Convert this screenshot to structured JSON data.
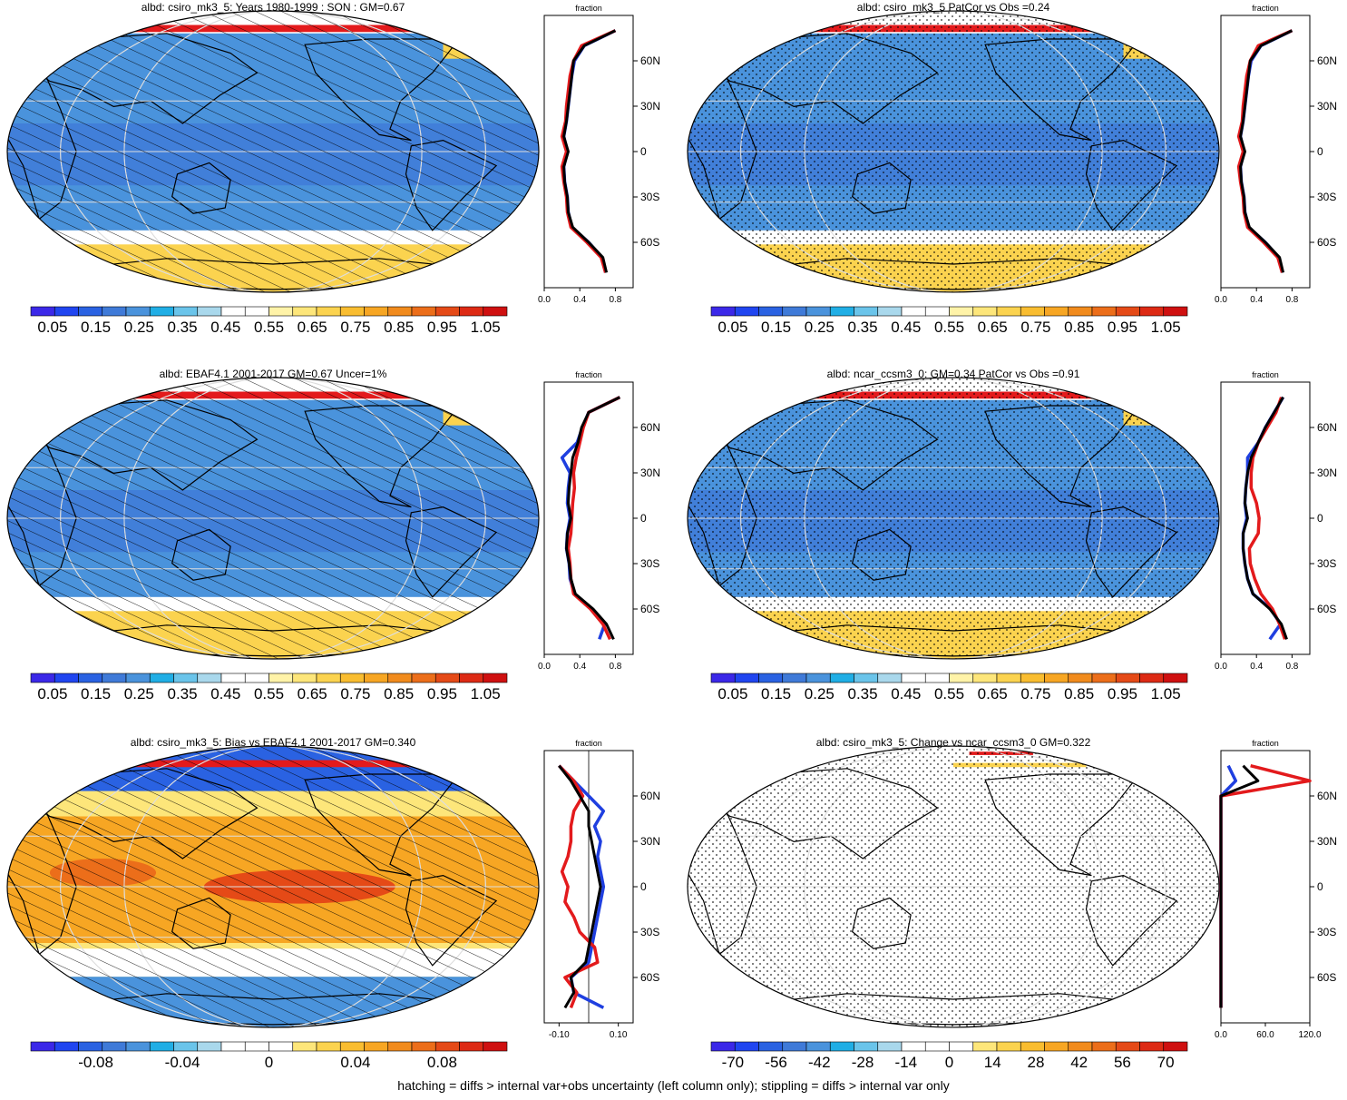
{
  "footer": "hatching = diffs > internal var+obs uncertainty (left column only); stippling = diffs > internal var only",
  "colors": {
    "palette": [
      "#3b28e8",
      "#2045f0",
      "#2a62e2",
      "#3f7ad8",
      "#4a93dc",
      "#20aee5",
      "#6ac4ea",
      "#a9d8ec",
      "#ffffff",
      "#ffffff",
      "#fff3a8",
      "#fde67a",
      "#fbd34f",
      "#f9bd30",
      "#f7a623",
      "#f18b1d",
      "#ec6e1a",
      "#e54a17",
      "#dd2a14",
      "#cf1010"
    ],
    "ocean_low": "#3f7ad8",
    "ocean_mid": "#4a93dc",
    "ice": "#fbd34f",
    "red_line": "#e31a1c",
    "blue_line": "#1f3fe0",
    "black_line": "#000000"
  },
  "profile_label": "fraction",
  "lat_ticks": [
    "60N",
    "30N",
    "0",
    "30S",
    "60S"
  ],
  "panels": [
    {
      "title": "albd: csiro_mk3_5: Years 1980-1999 : SON : GM=0.67",
      "map_type": "mean",
      "pattern": "hatch",
      "colorbar_labels": [
        "0.05",
        "0.15",
        "0.25",
        "0.35",
        "0.45",
        "0.55",
        "0.65",
        "0.75",
        "0.85",
        "0.95",
        "1.05"
      ],
      "profile_ticks": [
        "0.0",
        "0.4",
        "0.8"
      ]
    },
    {
      "title": "albd: csiro_mk3_5 PatCor vs Obs =0.24",
      "map_type": "mean",
      "pattern": "stipple",
      "colorbar_labels": [
        "0.05",
        "0.15",
        "0.25",
        "0.35",
        "0.45",
        "0.55",
        "0.65",
        "0.75",
        "0.85",
        "0.95",
        "1.05"
      ],
      "profile_ticks": [
        "0.0",
        "0.4",
        "0.8"
      ]
    },
    {
      "title": "albd: EBAF4.1 2001-2017 GM=0.67 Uncer=1%",
      "map_type": "mean",
      "pattern": "hatch",
      "colorbar_labels": [
        "0.05",
        "0.15",
        "0.25",
        "0.35",
        "0.45",
        "0.55",
        "0.65",
        "0.75",
        "0.85",
        "0.95",
        "1.05"
      ],
      "profile_ticks": [
        "0.0",
        "0.4",
        "0.8"
      ]
    },
    {
      "title": "albd: ncar_ccsm3_0: GM=0.34 PatCor vs Obs =0.91",
      "map_type": "mean",
      "pattern": "stipple",
      "colorbar_labels": [
        "0.05",
        "0.15",
        "0.25",
        "0.35",
        "0.45",
        "0.55",
        "0.65",
        "0.75",
        "0.85",
        "0.95",
        "1.05"
      ],
      "profile_ticks": [
        "0.0",
        "0.4",
        "0.8"
      ]
    },
    {
      "title": "albd: csiro_mk3_5: Bias vs EBAF4.1 2001-2017  GM=0.340",
      "map_type": "bias",
      "pattern": "hatch",
      "colorbar_labels": [
        "-0.08",
        "-0.04",
        "0",
        "0.04",
        "0.08"
      ],
      "profile_ticks": [
        "-0.10",
        "0.10"
      ]
    },
    {
      "title": "albd: csiro_mk3_5: Change vs ncar_ccsm3_0 GM=0.322",
      "map_type": "change",
      "pattern": "stipple",
      "colorbar_labels": [
        "-70",
        "-56",
        "-42",
        "-28",
        "-14",
        "0",
        "14",
        "28",
        "42",
        "56",
        "70"
      ],
      "profile_ticks": [
        "0.0",
        "60.0",
        "120.0"
      ]
    }
  ],
  "chart_data": [
    {
      "type": "heatmap",
      "title": "albd: csiro_mk3_5: Years 1980-1999 : SON : GM=0.67",
      "colorbar": {
        "min": 0.0,
        "max": 1.1,
        "labels": [
          0.05,
          0.15,
          0.25,
          0.35,
          0.45,
          0.55,
          0.65,
          0.75,
          0.85,
          0.95,
          1.05
        ]
      },
      "zonal_profile": {
        "xlabel": "fraction",
        "xlim": [
          0,
          1
        ],
        "lat": [
          -80,
          -70,
          -60,
          -50,
          -40,
          -30,
          -20,
          -10,
          0,
          10,
          20,
          30,
          40,
          50,
          60,
          70,
          80
        ],
        "series": [
          {
            "color": "black",
            "values": [
              0.7,
              0.66,
              0.5,
              0.32,
              0.27,
              0.26,
              0.23,
              0.22,
              0.27,
              0.22,
              0.25,
              0.27,
              0.29,
              0.31,
              0.33,
              0.45,
              0.8
            ]
          },
          {
            "color": "red",
            "values": [
              0.69,
              0.64,
              0.48,
              0.3,
              0.26,
              0.25,
              0.22,
              0.2,
              0.25,
              0.2,
              0.24,
              0.25,
              0.27,
              0.29,
              0.33,
              0.42,
              0.8
            ]
          },
          {
            "color": "blue",
            "values": [
              0.69,
              0.65,
              0.5,
              0.31,
              0.27,
              0.26,
              0.23,
              0.22,
              0.26,
              0.22,
              0.25,
              0.27,
              0.29,
              0.31,
              0.34,
              0.45,
              0.8
            ]
          }
        ]
      }
    },
    {
      "type": "heatmap",
      "title": "albd: csiro_mk3_5 PatCor vs Obs =0.24",
      "colorbar": {
        "min": 0.0,
        "max": 1.1,
        "labels": [
          0.05,
          0.15,
          0.25,
          0.35,
          0.45,
          0.55,
          0.65,
          0.75,
          0.85,
          0.95,
          1.05
        ]
      },
      "zonal_profile": {
        "xlabel": "fraction",
        "xlim": [
          0,
          1
        ],
        "lat": [
          -80,
          -70,
          -60,
          -50,
          -40,
          -30,
          -20,
          -10,
          0,
          10,
          20,
          30,
          40,
          50,
          60,
          70,
          80
        ],
        "series": [
          {
            "color": "black",
            "values": [
              0.7,
              0.66,
              0.5,
              0.32,
              0.27,
              0.26,
              0.23,
              0.22,
              0.27,
              0.22,
              0.25,
              0.27,
              0.29,
              0.31,
              0.33,
              0.45,
              0.8
            ]
          },
          {
            "color": "red",
            "values": [
              0.69,
              0.64,
              0.48,
              0.3,
              0.26,
              0.25,
              0.22,
              0.2,
              0.25,
              0.2,
              0.24,
              0.25,
              0.27,
              0.29,
              0.33,
              0.42,
              0.8
            ]
          },
          {
            "color": "blue",
            "values": [
              0.69,
              0.65,
              0.5,
              0.31,
              0.27,
              0.26,
              0.23,
              0.22,
              0.26,
              0.22,
              0.25,
              0.27,
              0.29,
              0.31,
              0.34,
              0.45,
              0.8
            ]
          }
        ]
      }
    },
    {
      "type": "heatmap",
      "title": "albd: EBAF4.1 2001-2017 GM=0.67 Uncer=1%",
      "colorbar": {
        "min": 0.0,
        "max": 1.1,
        "labels": [
          0.05,
          0.15,
          0.25,
          0.35,
          0.45,
          0.55,
          0.65,
          0.75,
          0.85,
          0.95,
          1.05
        ]
      },
      "zonal_profile": {
        "xlabel": "fraction",
        "xlim": [
          0,
          1
        ],
        "lat": [
          -80,
          -70,
          -60,
          -50,
          -40,
          -30,
          -20,
          -10,
          0,
          10,
          20,
          30,
          40,
          50,
          60,
          70,
          80
        ],
        "series": [
          {
            "color": "black",
            "values": [
              0.78,
              0.7,
              0.55,
              0.35,
              0.3,
              0.28,
              0.25,
              0.26,
              0.3,
              0.27,
              0.28,
              0.3,
              0.32,
              0.38,
              0.42,
              0.5,
              0.85
            ]
          },
          {
            "color": "red",
            "values": [
              0.74,
              0.66,
              0.52,
              0.33,
              0.3,
              0.29,
              0.27,
              0.3,
              0.31,
              0.32,
              0.34,
              0.33,
              0.36,
              0.4,
              0.44,
              0.5,
              0.85
            ]
          },
          {
            "color": "blue",
            "values": [
              0.62,
              0.68,
              0.54,
              0.34,
              0.29,
              0.28,
              0.25,
              0.26,
              0.29,
              0.26,
              0.27,
              0.29,
              0.2,
              0.37,
              0.43,
              0.5,
              0.85
            ]
          }
        ]
      }
    },
    {
      "type": "heatmap",
      "title": "albd: ncar_ccsm3_0: GM=0.34 PatCor vs Obs =0.91",
      "colorbar": {
        "min": 0.0,
        "max": 1.1,
        "labels": [
          0.05,
          0.15,
          0.25,
          0.35,
          0.45,
          0.55,
          0.65,
          0.75,
          0.85,
          0.95,
          1.05
        ]
      },
      "zonal_profile": {
        "xlabel": "fraction",
        "xlim": [
          0,
          1
        ],
        "lat": [
          -80,
          -70,
          -60,
          -50,
          -40,
          -30,
          -20,
          -10,
          0,
          10,
          20,
          30,
          40,
          50,
          60,
          70,
          80
        ],
        "series": [
          {
            "color": "black",
            "values": [
              0.74,
              0.68,
              0.55,
              0.36,
              0.3,
              0.27,
              0.25,
              0.25,
              0.3,
              0.27,
              0.28,
              0.3,
              0.34,
              0.42,
              0.5,
              0.6,
              0.7
            ]
          },
          {
            "color": "red",
            "values": [
              0.72,
              0.66,
              0.58,
              0.45,
              0.38,
              0.33,
              0.32,
              0.42,
              0.43,
              0.4,
              0.34,
              0.34,
              0.36,
              0.42,
              0.52,
              0.62,
              0.68
            ]
          },
          {
            "color": "blue",
            "values": [
              0.55,
              0.67,
              0.56,
              0.36,
              0.3,
              0.27,
              0.25,
              0.25,
              0.29,
              0.27,
              0.28,
              0.3,
              0.3,
              0.42,
              0.5,
              0.6,
              0.7
            ]
          }
        ]
      }
    },
    {
      "type": "heatmap",
      "title": "albd: csiro_mk3_5: Bias vs EBAF4.1 2001-2017  GM=0.340",
      "colorbar": {
        "min": -0.11,
        "max": 0.11,
        "labels": [
          -0.08,
          -0.04,
          0,
          0.04,
          0.08
        ]
      },
      "zonal_profile": {
        "xlabel": "fraction",
        "xlim": [
          -0.15,
          0.15
        ],
        "lat": [
          -80,
          -70,
          -60,
          -50,
          -40,
          -30,
          -20,
          -10,
          0,
          10,
          20,
          30,
          40,
          50,
          60,
          70,
          80
        ],
        "series": [
          {
            "color": "black",
            "values": [
              -0.08,
              -0.05,
              -0.06,
              -0.01,
              0.0,
              0.01,
              0.02,
              0.03,
              0.04,
              0.03,
              0.02,
              0.01,
              0.0,
              0.0,
              -0.03,
              -0.06,
              -0.1
            ]
          },
          {
            "color": "red",
            "values": [
              -0.06,
              -0.04,
              -0.08,
              0.03,
              0.02,
              -0.03,
              -0.05,
              -0.08,
              -0.07,
              -0.09,
              -0.07,
              -0.06,
              -0.06,
              -0.05,
              -0.02,
              -0.05,
              -0.1
            ]
          },
          {
            "color": "blue",
            "values": [
              0.05,
              -0.05,
              -0.06,
              0.0,
              0.01,
              0.02,
              0.03,
              0.04,
              0.05,
              0.04,
              0.03,
              0.04,
              0.02,
              0.05,
              0.0,
              -0.05,
              -0.1
            ]
          }
        ]
      }
    },
    {
      "type": "heatmap",
      "title": "albd: csiro_mk3_5: Change vs ncar_ccsm3_0 GM=0.322",
      "colorbar": {
        "min": -77,
        "max": 77,
        "labels": [
          -70,
          -56,
          -42,
          -28,
          -14,
          0,
          14,
          28,
          42,
          56,
          70
        ]
      },
      "zonal_profile": {
        "xlabel": "fraction",
        "xlim": [
          0,
          120
        ],
        "lat": [
          -80,
          -70,
          -60,
          -50,
          -40,
          -30,
          -20,
          -10,
          0,
          10,
          20,
          30,
          40,
          50,
          60,
          70,
          80
        ],
        "series": [
          {
            "color": "black",
            "values": [
              0,
              0,
              0,
              0,
              0,
              0,
              0,
              0,
              0,
              0,
              0,
              0,
              0,
              0,
              0,
              50,
              30
            ]
          },
          {
            "color": "red",
            "values": [
              0,
              0,
              0,
              0,
              0,
              0,
              0,
              0,
              0,
              0,
              0,
              0,
              0,
              0,
              0,
              120,
              40
            ]
          },
          {
            "color": "blue",
            "values": [
              0,
              0,
              0,
              0,
              0,
              0,
              0,
              0,
              0,
              0,
              0,
              0,
              0,
              0,
              0,
              20,
              10
            ]
          }
        ]
      }
    }
  ]
}
